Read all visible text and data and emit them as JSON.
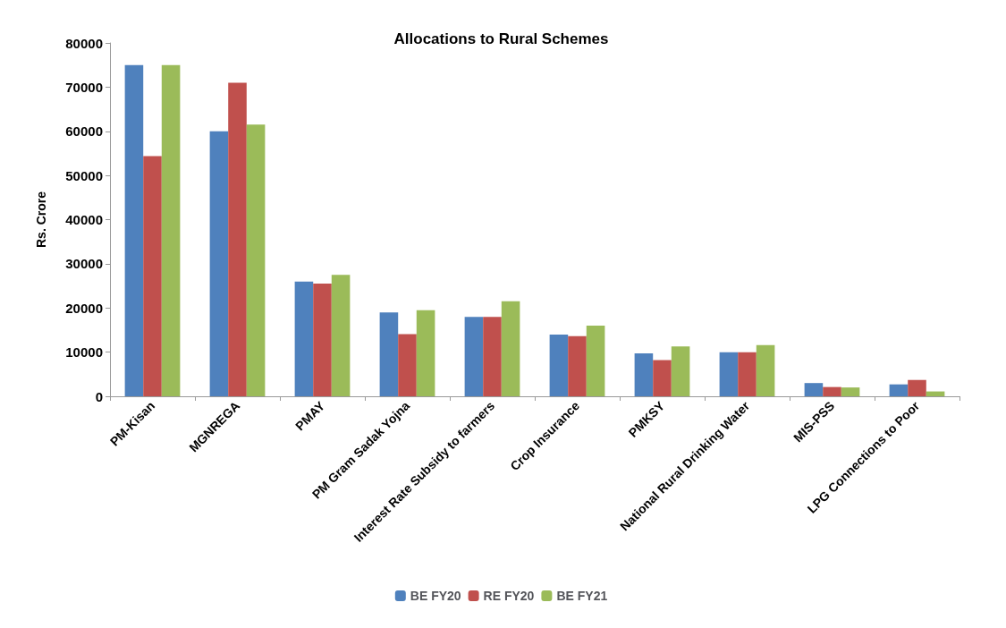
{
  "chart_data": {
    "type": "bar",
    "title": "Allocations to Rural Schemes",
    "ylabel": "Rs. Crore",
    "categories": [
      "PM-Kisan",
      "MGNREGA",
      "PMAY",
      "PM Gram Sadak Yojna",
      "Interest Rate Subsidy to farmers",
      "Crop Insurance",
      "PMKSY",
      "National Rural Drinking Water",
      "MIS-PSS",
      "LPG Connections to Poor"
    ],
    "series": [
      {
        "name": "BE FY20",
        "color": "#4f81bd",
        "values": [
          75000,
          60000,
          26000,
          19000,
          18000,
          14000,
          9700,
          10000,
          3000,
          2700
        ]
      },
      {
        "name": "RE FY20",
        "color": "#c0504d",
        "values": [
          54400,
          71000,
          25500,
          14100,
          18000,
          13600,
          8200,
          10000,
          2100,
          3700
        ]
      },
      {
        "name": "BE FY21",
        "color": "#9bbb59",
        "values": [
          75000,
          61500,
          27500,
          19500,
          21500,
          16000,
          11300,
          11600,
          2000,
          1100
        ]
      }
    ],
    "ylim": [
      0,
      80000
    ],
    "yticks": [
      0,
      10000,
      20000,
      30000,
      40000,
      50000,
      60000,
      70000,
      80000
    ],
    "grid": false,
    "legend": "bottom"
  }
}
